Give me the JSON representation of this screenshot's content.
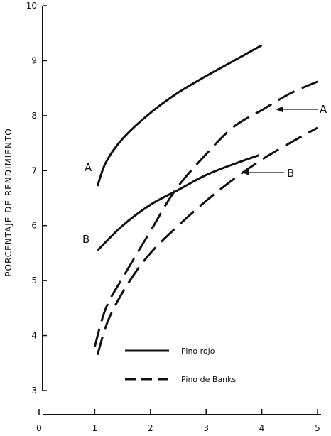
{
  "chart_data": {
    "type": "line",
    "title": "",
    "xlabel": "",
    "ylabel": "PORCENTAJE DE RENDIMIENTO",
    "xlim": [
      0,
      5
    ],
    "ylim": [
      3,
      10
    ],
    "x_ticks": [
      "0",
      "1",
      "2",
      "3",
      "4",
      "5"
    ],
    "y_ticks": [
      "3",
      "4",
      "5",
      "6",
      "7",
      "8",
      "9",
      "10"
    ],
    "grid": false,
    "legend_position": "bottom-right",
    "series": [
      {
        "name": "Pino rojo",
        "label": "A",
        "style": "solid",
        "x": [
          1.05,
          1.2,
          1.5,
          2.0,
          2.5,
          3.0,
          3.5,
          4.0
        ],
        "y": [
          6.72,
          7.15,
          7.58,
          8.05,
          8.42,
          8.72,
          9.0,
          9.28
        ]
      },
      {
        "name": "Pino rojo",
        "label": "B",
        "style": "solid",
        "x": [
          1.05,
          1.5,
          2.0,
          2.5,
          3.0,
          3.5,
          3.95
        ],
        "y": [
          5.55,
          6.0,
          6.38,
          6.65,
          6.92,
          7.12,
          7.28
        ]
      },
      {
        "name": "Pino de Banks",
        "label": "A",
        "style": "dashed",
        "x": [
          1.0,
          1.2,
          1.5,
          2.0,
          2.45,
          3.0,
          3.5,
          4.0,
          4.5,
          5.0
        ],
        "y": [
          3.8,
          4.5,
          5.05,
          5.9,
          6.65,
          7.3,
          7.8,
          8.1,
          8.4,
          8.62
        ]
      },
      {
        "name": "Pino de Banks",
        "label": "B",
        "style": "dashed",
        "x": [
          1.05,
          1.25,
          1.6,
          2.0,
          2.5,
          3.0,
          3.5,
          4.0,
          4.5,
          5.0
        ],
        "y": [
          3.65,
          4.3,
          4.95,
          5.5,
          6.0,
          6.45,
          6.85,
          7.2,
          7.5,
          7.78
        ]
      }
    ],
    "annotations": [
      "A",
      "B",
      "A",
      "B"
    ]
  }
}
